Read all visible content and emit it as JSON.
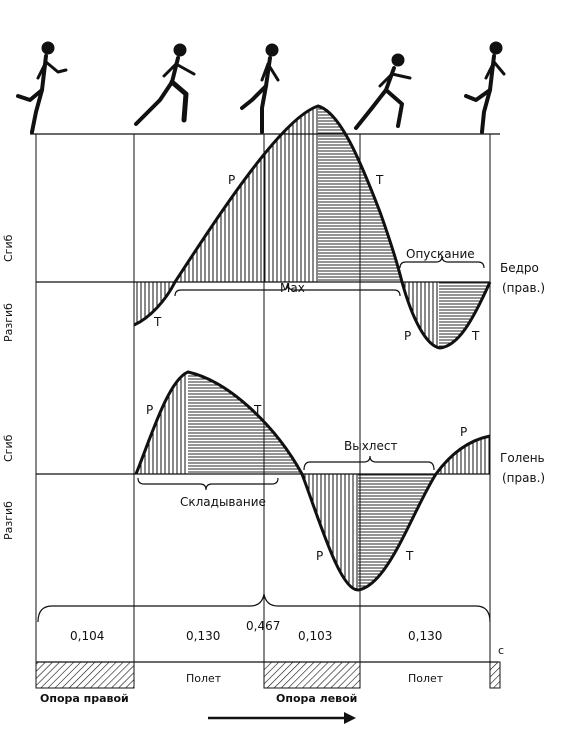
{
  "axis": {
    "flex_label": "Сгиб",
    "extend_label": "Разгиб"
  },
  "hip": {
    "name_line1": "Бедро",
    "name_line2": "(прав.)",
    "phase_labels": {
      "p1": "Р",
      "t1": "Т",
      "t_start": "Т",
      "p2": "Р",
      "t2": "Т"
    },
    "max_label": "Мах",
    "lowering_label": "Опускание"
  },
  "shin": {
    "name_line1": "Голень",
    "name_line2": "(прав.)",
    "phase_labels": {
      "p1": "Р",
      "t1": "Т",
      "p2": "Р",
      "t2": "Т",
      "p3": "Р"
    },
    "folding_label": "Складывание",
    "whip_label": "Выхлест"
  },
  "timing": {
    "total": "0,467",
    "durations": [
      "0,104",
      "0,130",
      "0,103",
      "0,130"
    ],
    "unit": "с"
  },
  "phases": {
    "support_right": "Опора правой",
    "flight1": "Полет",
    "support_left": "Опора левой",
    "flight2": "Полет"
  }
}
